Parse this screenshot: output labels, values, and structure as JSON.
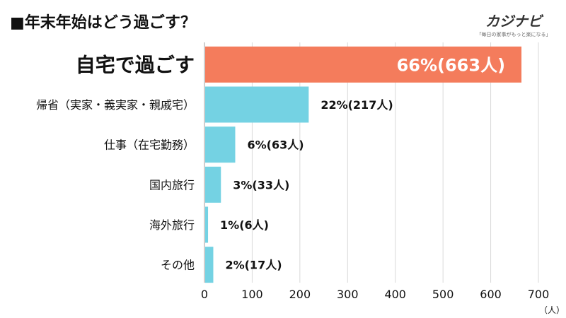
{
  "header": {
    "title": "■年末年始はどう過ごす？",
    "logo_name": "カジナビ",
    "logo_tagline": "「毎日の家事がもっと楽になる」"
  },
  "chart_data": {
    "type": "bar",
    "orientation": "horizontal",
    "title": "■年末年始はどう過ごす？",
    "categories": [
      "自宅で過ごす",
      "帰省（実家・義実家・親戚宅）",
      "仕事（在宅勤務）",
      "国内旅行",
      "海外旅行",
      "その他"
    ],
    "values": [
      663,
      217,
      63,
      33,
      6,
      17
    ],
    "value_labels": [
      "66%(663人)",
      "22%(217人)",
      "6%(63人)",
      "3%(33人)",
      "1%(6人)",
      "2%(17人)"
    ],
    "highlight_index": 0,
    "colors": {
      "highlight": "#F47C5C",
      "default": "#74D2E3",
      "grid": "#D9D9D9",
      "axis": "#BFBFBF"
    },
    "xticks": [
      "0",
      "100",
      "200",
      "300",
      "400",
      "500",
      "600",
      "700"
    ],
    "xlim": [
      0,
      700
    ],
    "xunit": "（人）",
    "grid": true
  }
}
